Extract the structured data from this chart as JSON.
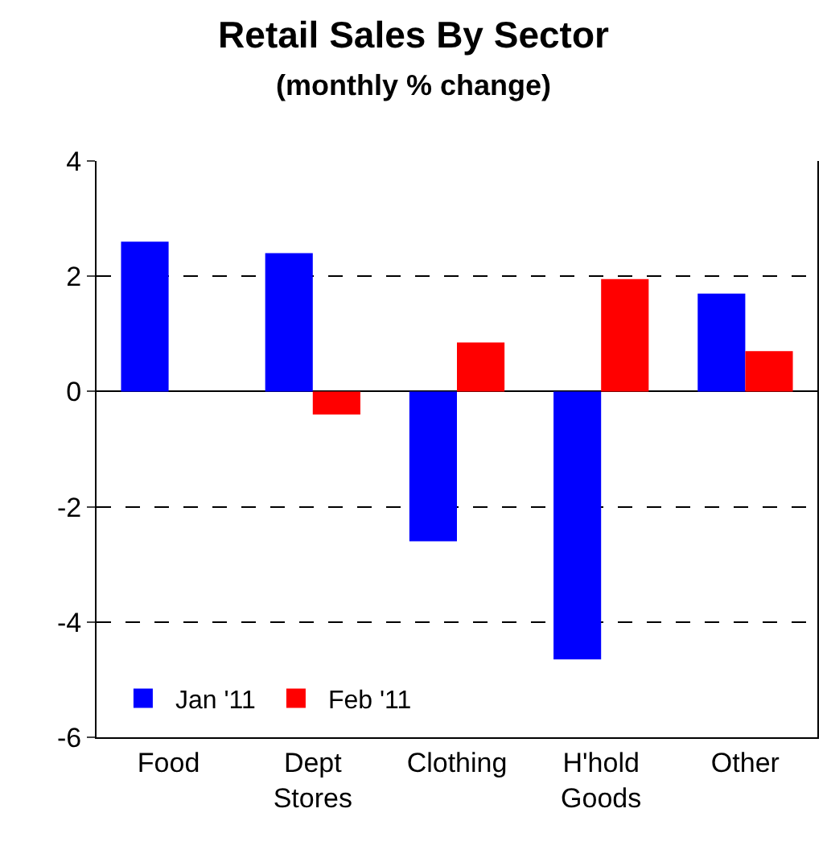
{
  "chart_data": {
    "type": "bar",
    "title": "Retail Sales By Sector",
    "subtitle": "(monthly % change)",
    "categories": [
      "Food",
      "Dept Stores",
      "Clothing",
      "H'hold Goods",
      "Other"
    ],
    "series": [
      {
        "name": "Jan '11",
        "color": "#0000ff",
        "values": [
          2.6,
          2.4,
          -2.6,
          -4.65,
          1.7
        ]
      },
      {
        "name": "Feb '11",
        "color": "#ff0000",
        "values": [
          0,
          -0.4,
          0.85,
          1.95,
          0.7
        ]
      }
    ],
    "ylim": [
      -6,
      4
    ],
    "yticks": [
      -6,
      -4,
      -2,
      0,
      2,
      4
    ],
    "grid": "y",
    "legend": "bottom left"
  }
}
